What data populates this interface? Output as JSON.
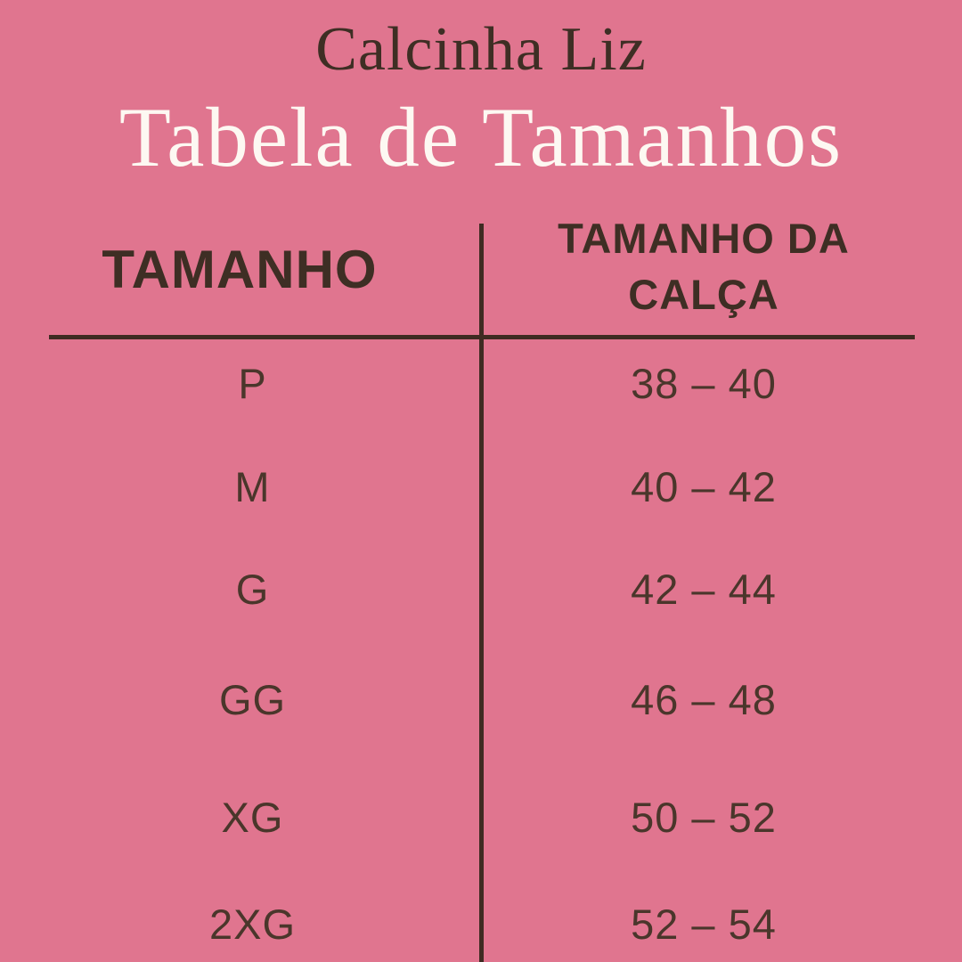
{
  "colors": {
    "background": "#e0758f",
    "text_brown": "#3e2e24",
    "row_text_brown": "#4a362b",
    "line_brown": "#3f2b22",
    "title_white": "#fdf8f2"
  },
  "header": {
    "brand": "Calcinha Liz",
    "title": "Tabela de Tamanhos"
  },
  "table": {
    "col1_header": "TAMANHO",
    "col2_header": "TAMANHO DA CALÇA",
    "rows": [
      {
        "size": "P",
        "range": "38 – 40"
      },
      {
        "size": "M",
        "range": "40 – 42"
      },
      {
        "size": "G",
        "range": "42 – 44"
      },
      {
        "size": "GG",
        "range": "46 – 48"
      },
      {
        "size": "XG",
        "range": "50 – 52"
      },
      {
        "size": "2XG",
        "range": "52 – 54"
      }
    ]
  }
}
